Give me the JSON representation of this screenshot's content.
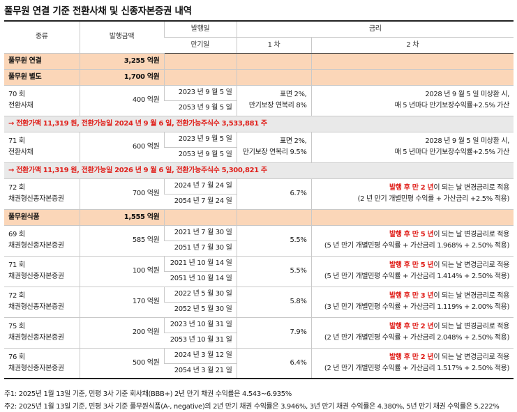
{
  "title": "풀무원 연결 기준 전환사채 및 신종자본증권 내역",
  "header": {
    "kind": "종류",
    "amount": "발행금액",
    "issue_date": "발행일",
    "rate": "금리",
    "maturity": "만기일",
    "first": "1 차",
    "second": "2 차"
  },
  "groups": {
    "consolidated": {
      "name": "풀무원 연결",
      "amount": "3,255 억원"
    },
    "separate": {
      "name": "풀무원 별도",
      "amount": "1,700 억원"
    },
    "foods": {
      "name": "풀무원식품",
      "amount": "1,555 억원"
    }
  },
  "rows": [
    {
      "name1": "70 회",
      "name2": "전환사채",
      "amount": "400 억원",
      "issue": "2023 년 9 월 5 일",
      "maturity": "2053 년 9 월 5 일",
      "rate1a": "표면 2%,",
      "rate1b": "만기보장 연복리 8%",
      "rate2a_red": "",
      "rate2a": "2028 년 9 월 5 일 미상환 시,",
      "rate2b": "매 5 년마다 만기보장수익률+2.5% 가산"
    },
    {
      "name1": "71 회",
      "name2": "전환사채",
      "amount": "600 억원",
      "issue": "2023 년 9 월 5 일",
      "maturity": "2053 년 9 월 5 일",
      "rate1a": "표면 2%,",
      "rate1b": "만기보장 연복리 9.5%",
      "rate2a_red": "",
      "rate2a": "2028 년 9 월 5 일 미상환 시,",
      "rate2b": "매 5 년마다 만기보장수익률+2.5% 가산"
    },
    {
      "name1": "72 회",
      "name2": "채권형신종자본증권",
      "amount": "700 억원",
      "issue": "2024 년 7 월 24 일",
      "maturity": "2054 년 7 월 24 일",
      "rate1a": "6.7%",
      "rate1b": "",
      "rate2a_red": "발행 후 만 2 년",
      "rate2a": "이 되는 날 변경금리로 적용",
      "rate2b": "(2 년 만기 개별민평 수익률 + 가산금리 +2.5% 적용)"
    },
    {
      "name1": "69 회",
      "name2": "채권형신종자본증권",
      "amount": "585 억원",
      "issue": "2021 년 7 월 30 일",
      "maturity": "2051 년 7 월 30 일",
      "rate1a": "5.5%",
      "rate1b": "",
      "rate2a_red": "발행 후 만 5 년",
      "rate2a": "이 되는 날 변경금리로 적용",
      "rate2b": "(5 년 만기 개별민평 수익률 + 가산금리 1.968% + 2.50% 적용)"
    },
    {
      "name1": "71 회",
      "name2": "채권형신종자본증권",
      "amount": "100 억원",
      "issue": "2021 년 10 월 14 일",
      "maturity": "2051 년 10 월 14 일",
      "rate1a": "5.5%",
      "rate1b": "",
      "rate2a_red": "발행 후 만 5 년",
      "rate2a": "이 되는 날 변경금리로 적용",
      "rate2b": "(5 년 만기 개별민평 수익률 + 가산금리 1.414% + 2.50% 적용)"
    },
    {
      "name1": "72 회",
      "name2": "채권형신종자본증권",
      "amount": "170 억원",
      "issue": "2022 년 5 월 30 일",
      "maturity": "2052 년 5 월 30 일",
      "rate1a": "5.8%",
      "rate1b": "",
      "rate2a_red": "발행 후 만 3 년",
      "rate2a": "이 되는 날 변경금리로 적용",
      "rate2b": "(3 년 만기 개별민평 수익률 + 가산금리 1.119% + 2.00% 적용)"
    },
    {
      "name1": "75 회",
      "name2": "채권형신종자본증권",
      "amount": "200 억원",
      "issue": "2023 년 10 월 31 일",
      "maturity": "2053 년 10 월 31 일",
      "rate1a": "7.9%",
      "rate1b": "",
      "rate2a_red": "발행 후 만 2 년",
      "rate2a": "이 되는 날 변경금리로 적용",
      "rate2b": "(2 년 만기 개별민평 수익률 + 가산금리 2.048% + 2.50% 적용)"
    },
    {
      "name1": "76 회",
      "name2": "채권형신종자본증권",
      "amount": "500 억원",
      "issue": "2024 년 3 월 12 일",
      "maturity": "2054 년 3 월 21 일",
      "rate1a": "6.4%",
      "rate1b": "",
      "rate2a_red": "발행 후 만 2 년",
      "rate2a": "이 되는 날 변경금리로 적용",
      "rate2b": "(2 년 만기 개별민평 수익률 + 가산금리 1.517% + 2.50% 적용)"
    }
  ],
  "notes": {
    "cb70": "→ 전환가액 11,319 원, 전환가능일 2024 년 9 월 6 일, 전환가능주식수 3,533,881 주",
    "cb71": "→ 전환가액 11,319 원, 전환가능일 2026 년 9 월 6 일, 전환가능주식수 5,300,821 주"
  },
  "footnotes": {
    "f1": "주1: 2025년 1월 13일 기준, 민평 3사 기준 회사채(BBB+) 2년 만기 채권 수익률은 4.543~6.935%",
    "f2": "주2: 2025년 1월 13일 기준, 민평 3사 기준 풀무원식품(A-, negative)의 2년 만기 채권 수익률은 3.946%, 3년 만기 채권 수익률은 4.380%, 5년 만기 채권 수익률은 5.222%"
  },
  "colors": {
    "group_bg": "#fbd6b8",
    "note_bg": "#e9e9e9",
    "accent_red": "#e0201b"
  }
}
